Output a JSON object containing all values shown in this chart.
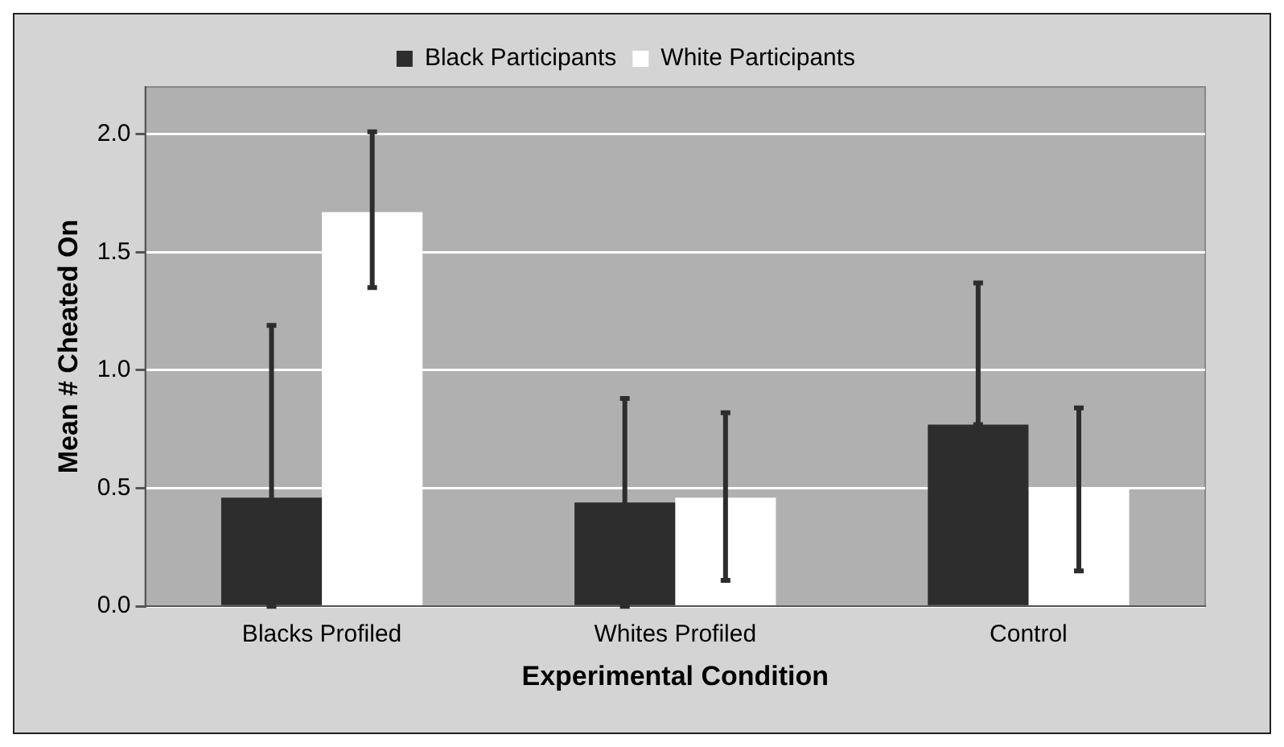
{
  "chart_data": {
    "type": "bar",
    "xlabel": "Experimental Condition",
    "ylabel": "Mean # Cheated On",
    "categories": [
      "Blacks Profiled",
      "Whites Profiled",
      "Control"
    ],
    "series": [
      {
        "name": "Black Participants",
        "color": "#2d2d2d",
        "values": [
          0.46,
          0.44,
          0.77
        ],
        "errors": [
          [
            0,
            1.19
          ],
          [
            0,
            0.88
          ],
          [
            0.77,
            1.37
          ]
        ]
      },
      {
        "name": "White Participants",
        "color": "#ffffff",
        "values": [
          1.67,
          0.46,
          0.5
        ],
        "errors": [
          [
            1.35,
            2.01
          ],
          [
            0.11,
            0.82
          ],
          [
            0.15,
            0.84
          ]
        ]
      }
    ],
    "ylim": [
      0,
      2.2
    ],
    "yticks": [
      {
        "value": 0,
        "label": "0.0"
      },
      {
        "value": 0.5,
        "label": "0.5"
      },
      {
        "value": 1,
        "label": "1.0"
      },
      {
        "value": 1.5,
        "label": "1.5"
      },
      {
        "value": 2,
        "label": "2.0"
      }
    ],
    "grid": "y",
    "legend": "top"
  }
}
